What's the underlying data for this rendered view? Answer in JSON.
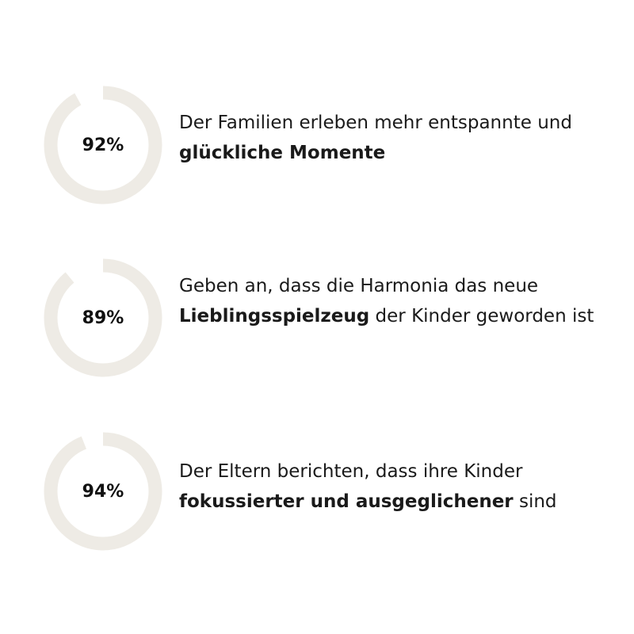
{
  "colors": {
    "ring_track": "#eeebe5",
    "ring_fill": "#eeebe5",
    "text": "#1a1a1a"
  },
  "stats": [
    {
      "value_label": "92%",
      "percent": 92,
      "text_before": "Der Familien erleben mehr entspannte und ",
      "text_bold": "glückliche Momente",
      "text_after": ""
    },
    {
      "value_label": "89%",
      "percent": 89,
      "text_before": "Geben an, dass die Harmonia das neue ",
      "text_bold": "Lieblingsspielzeug",
      "text_after": " der Kinder geworden ist"
    },
    {
      "value_label": "94%",
      "percent": 94,
      "text_before": "Der Eltern berichten, dass ihre Kinder ",
      "text_bold": "fokussierter und ausgeglichener",
      "text_after": " sind"
    }
  ]
}
